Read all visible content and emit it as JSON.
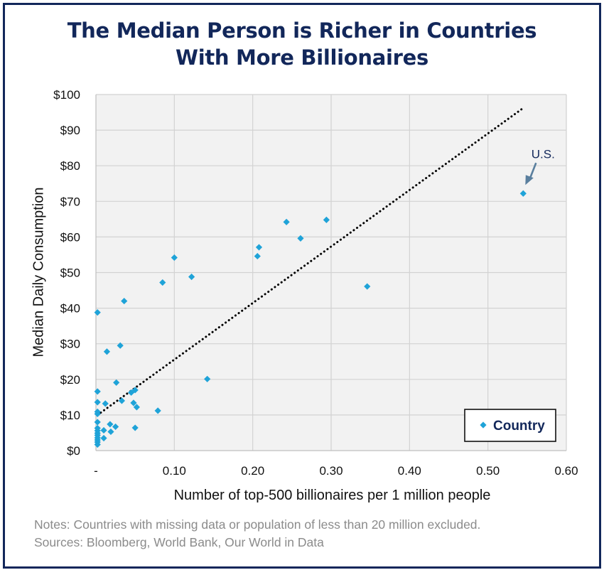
{
  "chart_data": {
    "type": "scatter",
    "title_lines": [
      "The Median Person is Richer in Countries",
      "With More Billionaires"
    ],
    "xlabel": "Number of top-500 billionaires per 1 million people",
    "ylabel": "Median Daily Consumption",
    "xlim": [
      0,
      0.6
    ],
    "ylim": [
      0,
      100
    ],
    "x_ticks": [
      {
        "v": 0,
        "label": "-"
      },
      {
        "v": 0.1,
        "label": "0.10"
      },
      {
        "v": 0.2,
        "label": "0.20"
      },
      {
        "v": 0.3,
        "label": "0.30"
      },
      {
        "v": 0.4,
        "label": "0.40"
      },
      {
        "v": 0.5,
        "label": "0.50"
      },
      {
        "v": 0.6,
        "label": "0.60"
      }
    ],
    "y_ticks": [
      {
        "v": 0,
        "label": "$0"
      },
      {
        "v": 10,
        "label": "$10"
      },
      {
        "v": 20,
        "label": "$20"
      },
      {
        "v": 30,
        "label": "$30"
      },
      {
        "v": 40,
        "label": "$40"
      },
      {
        "v": 50,
        "label": "$50"
      },
      {
        "v": 60,
        "label": "$60"
      },
      {
        "v": 70,
        "label": "$70"
      },
      {
        "v": 80,
        "label": "$80"
      },
      {
        "v": 90,
        "label": "$90"
      },
      {
        "v": 100,
        "label": "$100"
      }
    ],
    "grid": true,
    "legend": {
      "position": "bottom-right",
      "label": "Country"
    },
    "series": [
      {
        "name": "Country",
        "color": "#1fa3d8",
        "marker": "diamond",
        "points": [
          [
            0.002,
            38.8
          ],
          [
            0.002,
            16.6
          ],
          [
            0.002,
            13.6
          ],
          [
            0.002,
            10.9
          ],
          [
            0.002,
            10.3
          ],
          [
            0.002,
            8.0
          ],
          [
            0.002,
            6.3
          ],
          [
            0.002,
            5.6
          ],
          [
            0.002,
            4.9
          ],
          [
            0.002,
            4.3
          ],
          [
            0.002,
            3.6
          ],
          [
            0.002,
            3.0
          ],
          [
            0.002,
            2.4
          ],
          [
            0.002,
            1.7
          ],
          [
            0.01,
            5.7
          ],
          [
            0.01,
            3.5
          ],
          [
            0.012,
            13.2
          ],
          [
            0.014,
            27.8
          ],
          [
            0.018,
            7.4
          ],
          [
            0.019,
            5.3
          ],
          [
            0.025,
            6.7
          ],
          [
            0.026,
            19.1
          ],
          [
            0.031,
            29.5
          ],
          [
            0.033,
            14.0
          ],
          [
            0.036,
            42.0
          ],
          [
            0.045,
            16.3
          ],
          [
            0.048,
            13.4
          ],
          [
            0.05,
            17.0
          ],
          [
            0.05,
            6.4
          ],
          [
            0.052,
            12.2
          ],
          [
            0.079,
            11.2
          ],
          [
            0.085,
            47.2
          ],
          [
            0.1,
            54.2
          ],
          [
            0.122,
            48.8
          ],
          [
            0.142,
            20.1
          ],
          [
            0.206,
            54.6
          ],
          [
            0.208,
            57.1
          ],
          [
            0.243,
            64.2
          ],
          [
            0.261,
            59.6
          ],
          [
            0.294,
            64.8
          ],
          [
            0.346,
            46.1
          ],
          [
            0.545,
            72.2
          ]
        ]
      }
    ],
    "trendline": {
      "style": "dotted",
      "color": "#000000",
      "points": [
        [
          0.002,
          10.0
        ],
        [
          0.545,
          96.2
        ]
      ]
    },
    "annotations": [
      {
        "text": "U.S.",
        "color": "#12275a"
      }
    ],
    "notes": [
      "Notes: Countries with missing data or population of less than 20 million excluded.",
      "Sources: Bloomberg, World Bank, Our World in Data"
    ]
  }
}
